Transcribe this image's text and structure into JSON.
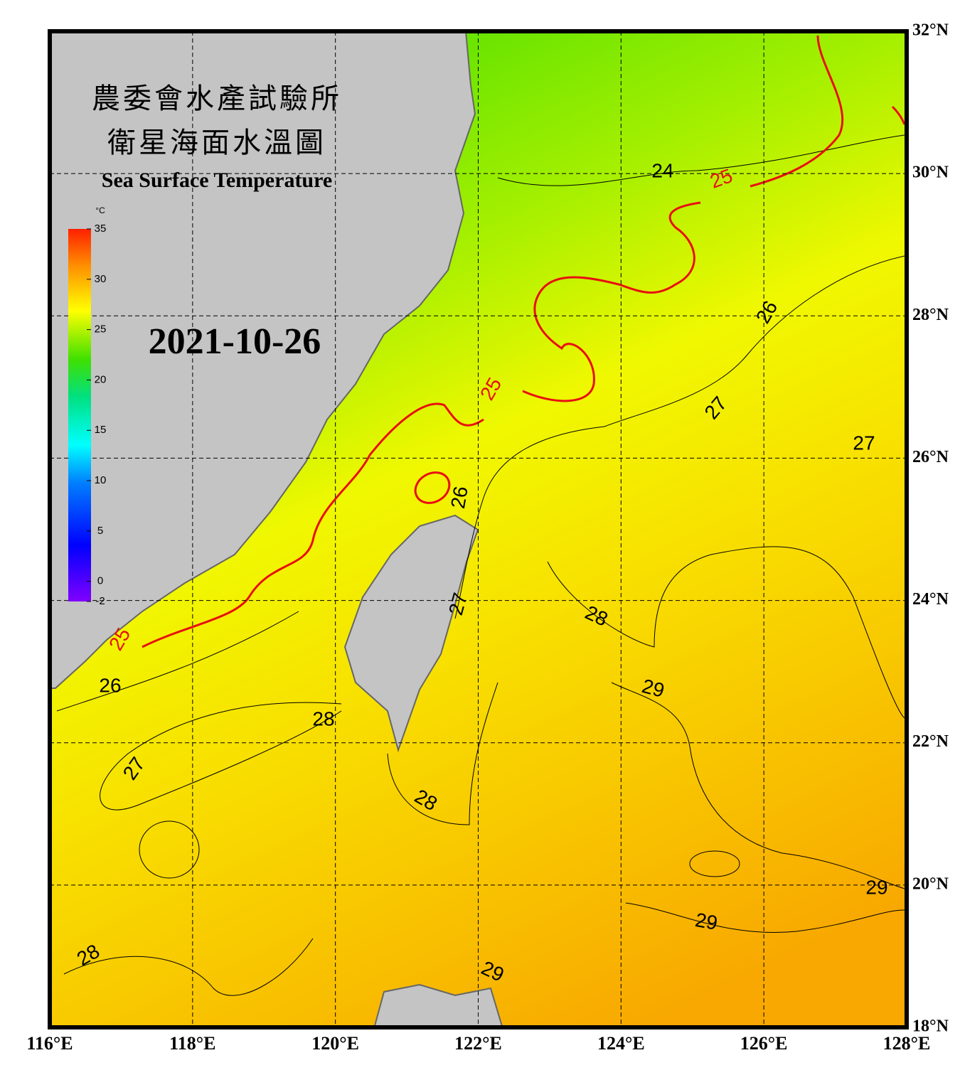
{
  "header": {
    "title_zh_1": "農委會水產試驗所",
    "title_zh_2": "衛星海面水溫圖",
    "title_en": "Sea Surface Temperature",
    "date": "2021-10-26"
  },
  "colorbar": {
    "unit": "°C",
    "range": [
      -2,
      35
    ],
    "ticks": [
      35,
      30,
      25,
      20,
      15,
      10,
      5,
      0,
      -2
    ]
  },
  "map": {
    "lonlim": [
      116,
      128
    ],
    "latlim": [
      18,
      32
    ],
    "lonticks": [
      {
        "value": 116,
        "label": "116°E"
      },
      {
        "value": 118,
        "label": "118°E"
      },
      {
        "value": 120,
        "label": "120°E"
      },
      {
        "value": 122,
        "label": "122°E"
      },
      {
        "value": 124,
        "label": "124°E"
      },
      {
        "value": 126,
        "label": "126°E"
      },
      {
        "value": 128,
        "label": "128°E"
      }
    ],
    "latticks": [
      {
        "value": 32,
        "label": "32°N"
      },
      {
        "value": 30,
        "label": "30°N"
      },
      {
        "value": 28,
        "label": "28°N"
      },
      {
        "value": 26,
        "label": "26°N"
      },
      {
        "value": 24,
        "label": "24°N"
      },
      {
        "value": 22,
        "label": "22°N"
      },
      {
        "value": 20,
        "label": "20°N"
      },
      {
        "value": 18,
        "label": "18°N"
      }
    ],
    "contour_labels": [
      24,
      25,
      25,
      25,
      26,
      26,
      26,
      27,
      27,
      27,
      27,
      28,
      28,
      28,
      28,
      29,
      29,
      29,
      29
    ]
  }
}
